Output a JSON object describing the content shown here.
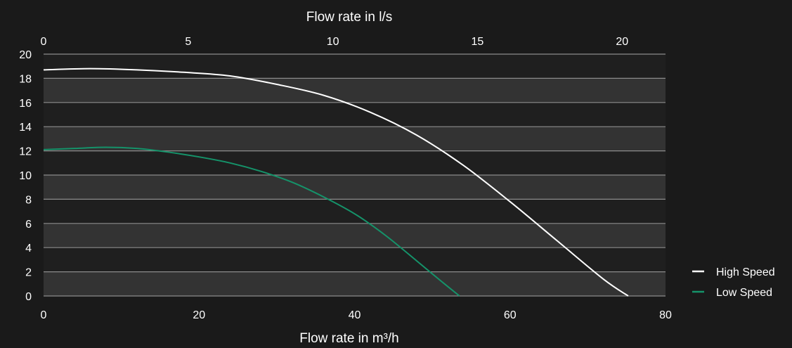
{
  "chart_data": {
    "type": "line",
    "xlabel": "Flow rate in m³/h",
    "x2label": "Flow rate in l/s",
    "ylabel": "",
    "xlim": [
      0,
      80
    ],
    "x2lim": [
      0,
      21.5
    ],
    "ylim": [
      0,
      20
    ],
    "x_ticks": [
      "0",
      "20",
      "40",
      "60",
      "80"
    ],
    "x2_ticks": [
      "0",
      "5",
      "10",
      "15",
      "20"
    ],
    "y_ticks": [
      "0",
      "2",
      "4",
      "6",
      "8",
      "10",
      "12",
      "14",
      "16",
      "18",
      "20"
    ],
    "grid": true,
    "legend_position": "bottom-right",
    "series": [
      {
        "name": "High Speed",
        "color": "#ffffff",
        "points": [
          [
            0,
            18.7
          ],
          [
            6,
            18.8
          ],
          [
            12,
            18.7
          ],
          [
            18,
            18.5
          ],
          [
            24,
            18.2
          ],
          [
            30,
            17.5
          ],
          [
            36,
            16.6
          ],
          [
            42,
            15.2
          ],
          [
            48,
            13.3
          ],
          [
            54,
            10.8
          ],
          [
            60,
            7.8
          ],
          [
            66,
            4.6
          ],
          [
            72,
            1.4
          ],
          [
            75.2,
            0
          ]
        ]
      },
      {
        "name": "Low Speed",
        "color": "#15936a",
        "points": [
          [
            0,
            12.1
          ],
          [
            4,
            12.2
          ],
          [
            8,
            12.3
          ],
          [
            12,
            12.2
          ],
          [
            16,
            11.9
          ],
          [
            20,
            11.5
          ],
          [
            24,
            11.0
          ],
          [
            28,
            10.3
          ],
          [
            32,
            9.4
          ],
          [
            36,
            8.2
          ],
          [
            40,
            6.8
          ],
          [
            44,
            5.0
          ],
          [
            48,
            2.9
          ],
          [
            51,
            1.3
          ],
          [
            53.5,
            0
          ]
        ]
      }
    ]
  }
}
